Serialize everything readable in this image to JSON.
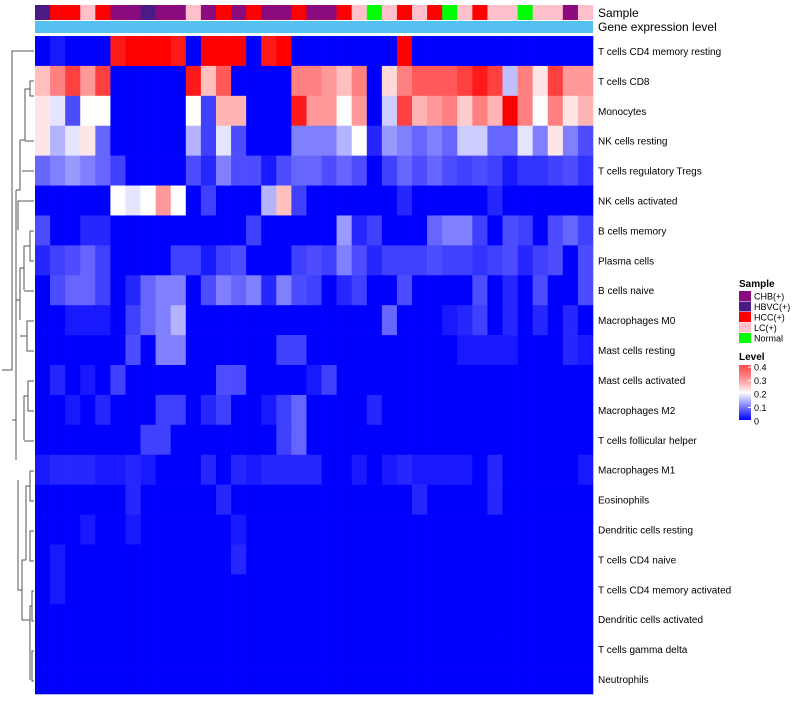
{
  "chart_data": {
    "type": "heatmap",
    "title": "",
    "annotation_tracks": [
      "Sample",
      "Gene expression level"
    ],
    "rows": [
      "T cells CD4 memory resting",
      "T cells CD8",
      "Monocytes",
      "NK cells resting",
      "T cells regulatory  Tregs",
      "NK cells activated",
      "B cells memory",
      "Plasma cells",
      "B cells naive",
      "Macrophages M0",
      "Mast cells resting",
      "Mast cells activated",
      "Macrophages M2",
      "T cells follicular helper",
      "Macrophages M1",
      "Eosinophils",
      "Dendritic cells resting",
      "T cells CD4 naive",
      "T cells CD4 memory activated",
      "Dendritic cells activated",
      "T cells gamma delta",
      "Neutrophils"
    ],
    "sample_groups": [
      "HBVC(+)",
      "HCC(+)",
      "HCC(+)",
      "LC(+)",
      "HCC(+)",
      "CHB(+)",
      "CHB(+)",
      "HBVC(+)",
      "CHB(+)",
      "CHB(+)",
      "LC(+)",
      "CHB(+)",
      "HCC(+)",
      "CHB(+)",
      "HCC(+)",
      "CHB(+)",
      "CHB(+)",
      "HCC(+)",
      "CHB(+)",
      "CHB(+)",
      "HCC(+)",
      "LC(+)",
      "Normal",
      "LC(+)",
      "HCC(+)",
      "LC(+)",
      "HCC(+)",
      "Normal",
      "LC(+)",
      "HCC(+)",
      "LC(+)",
      "LC(+)",
      "Normal",
      "LC(+)",
      "LC(+)",
      "CHB(+)",
      "LC(+)"
    ],
    "values": [
      [
        0.0,
        0.02,
        0.0,
        0.0,
        0.0,
        0.38,
        0.4,
        0.4,
        0.4,
        0.38,
        0.0,
        0.4,
        0.4,
        0.4,
        0.0,
        0.38,
        0.4,
        0.0,
        0.0,
        0.0,
        0.0,
        0.0,
        0.0,
        0.0,
        0.4,
        0.0,
        0.0,
        0.0,
        0.0,
        0.0,
        0.0,
        0.0,
        0.0,
        0.0,
        0.0,
        0.0,
        0.0
      ],
      [
        0.25,
        0.3,
        0.35,
        0.28,
        0.35,
        0.0,
        0.0,
        0.0,
        0.0,
        0.0,
        0.38,
        0.25,
        0.33,
        0.0,
        0.0,
        0.0,
        0.0,
        0.3,
        0.3,
        0.28,
        0.25,
        0.3,
        0.0,
        0.23,
        0.3,
        0.33,
        0.33,
        0.33,
        0.35,
        0.38,
        0.35,
        0.15,
        0.3,
        0.22,
        0.35,
        0.28,
        0.28
      ],
      [
        0.22,
        0.18,
        0.06,
        0.2,
        0.2,
        0.0,
        0.0,
        0.0,
        0.0,
        0.0,
        0.2,
        0.05,
        0.26,
        0.26,
        0.0,
        0.0,
        0.0,
        0.38,
        0.28,
        0.28,
        0.2,
        0.28,
        0.0,
        0.16,
        0.35,
        0.26,
        0.28,
        0.3,
        0.24,
        0.3,
        0.26,
        0.4,
        0.3,
        0.2,
        0.3,
        0.22,
        0.26
      ],
      [
        0.22,
        0.14,
        0.18,
        0.22,
        0.08,
        0.0,
        0.0,
        0.0,
        0.0,
        0.0,
        0.14,
        0.05,
        0.18,
        0.06,
        0.0,
        0.0,
        0.0,
        0.1,
        0.1,
        0.1,
        0.14,
        0.2,
        0.03,
        0.12,
        0.1,
        0.08,
        0.1,
        0.08,
        0.16,
        0.16,
        0.08,
        0.08,
        0.18,
        0.1,
        0.22,
        0.1,
        0.06
      ],
      [
        0.08,
        0.1,
        0.12,
        0.1,
        0.08,
        0.05,
        0.0,
        0.0,
        0.0,
        0.0,
        0.06,
        0.03,
        0.1,
        0.06,
        0.06,
        0.02,
        0.06,
        0.08,
        0.08,
        0.06,
        0.08,
        0.06,
        0.0,
        0.05,
        0.08,
        0.06,
        0.08,
        0.06,
        0.05,
        0.06,
        0.05,
        0.02,
        0.04,
        0.04,
        0.05,
        0.06,
        0.04
      ],
      [
        0.0,
        0.0,
        0.0,
        0.0,
        0.0,
        0.2,
        0.18,
        0.2,
        0.28,
        0.2,
        0.0,
        0.05,
        0.0,
        0.0,
        0.0,
        0.14,
        0.25,
        0.05,
        0.0,
        0.0,
        0.0,
        0.0,
        0.0,
        0.0,
        0.03,
        0.0,
        0.0,
        0.0,
        0.0,
        0.0,
        0.03,
        0.0,
        0.0,
        0.0,
        0.0,
        0.0,
        0.0
      ],
      [
        0.06,
        0.0,
        0.0,
        0.03,
        0.03,
        0.0,
        0.0,
        0.0,
        0.0,
        0.0,
        0.0,
        0.0,
        0.0,
        0.0,
        0.05,
        0.0,
        0.0,
        0.0,
        0.0,
        0.0,
        0.12,
        0.03,
        0.05,
        0.0,
        0.0,
        0.0,
        0.08,
        0.1,
        0.1,
        0.05,
        0.0,
        0.06,
        0.05,
        0.0,
        0.06,
        0.08,
        0.05
      ],
      [
        0.03,
        0.05,
        0.06,
        0.08,
        0.05,
        0.0,
        0.0,
        0.0,
        0.0,
        0.05,
        0.05,
        0.02,
        0.05,
        0.06,
        0.0,
        0.0,
        0.0,
        0.05,
        0.06,
        0.05,
        0.1,
        0.06,
        0.03,
        0.05,
        0.05,
        0.05,
        0.06,
        0.05,
        0.05,
        0.04,
        0.05,
        0.06,
        0.03,
        0.05,
        0.06,
        0.0,
        0.06
      ],
      [
        0.0,
        0.06,
        0.08,
        0.08,
        0.05,
        0.0,
        0.03,
        0.08,
        0.1,
        0.1,
        0.0,
        0.06,
        0.1,
        0.08,
        0.1,
        0.03,
        0.1,
        0.06,
        0.05,
        0.0,
        0.03,
        0.05,
        0.0,
        0.0,
        0.06,
        0.0,
        0.0,
        0.0,
        0.0,
        0.06,
        0.0,
        0.03,
        0.0,
        0.06,
        0.0,
        0.0,
        0.06
      ],
      [
        0.0,
        0.0,
        0.02,
        0.02,
        0.02,
        0.0,
        0.05,
        0.08,
        0.1,
        0.14,
        0.0,
        0.0,
        0.0,
        0.0,
        0.0,
        0.0,
        0.0,
        0.0,
        0.0,
        0.0,
        0.0,
        0.0,
        0.0,
        0.08,
        0.0,
        0.0,
        0.0,
        0.02,
        0.03,
        0.05,
        0.0,
        0.03,
        0.0,
        0.03,
        0.0,
        0.03,
        0.0
      ],
      [
        0.0,
        0.0,
        0.0,
        0.0,
        0.0,
        0.0,
        0.06,
        0.0,
        0.1,
        0.1,
        0.0,
        0.0,
        0.0,
        0.0,
        0.0,
        0.0,
        0.05,
        0.05,
        0.0,
        0.0,
        0.0,
        0.0,
        0.0,
        0.0,
        0.0,
        0.0,
        0.0,
        0.0,
        0.02,
        0.02,
        0.02,
        0.02,
        0.0,
        0.0,
        0.0,
        0.03,
        0.02
      ],
      [
        0.0,
        0.03,
        0.0,
        0.02,
        0.0,
        0.05,
        0.0,
        0.0,
        0.0,
        0.0,
        0.0,
        0.0,
        0.06,
        0.06,
        0.0,
        0.0,
        0.0,
        0.0,
        0.02,
        0.05,
        0.0,
        0.0,
        0.0,
        0.0,
        0.0,
        0.0,
        0.0,
        0.0,
        0.0,
        0.0,
        0.0,
        0.0,
        0.0,
        0.0,
        0.0,
        0.0,
        0.0
      ],
      [
        0.0,
        0.0,
        0.02,
        0.0,
        0.03,
        0.0,
        0.0,
        0.0,
        0.05,
        0.05,
        0.0,
        0.03,
        0.05,
        0.0,
        0.0,
        0.02,
        0.05,
        0.08,
        0.0,
        0.0,
        0.0,
        0.0,
        0.03,
        0.0,
        0.0,
        0.0,
        0.0,
        0.0,
        0.0,
        0.0,
        0.0,
        0.0,
        0.0,
        0.0,
        0.0,
        0.0,
        0.0
      ],
      [
        0.0,
        0.0,
        0.0,
        0.0,
        0.0,
        0.0,
        0.0,
        0.05,
        0.05,
        0.0,
        0.0,
        0.0,
        0.0,
        0.0,
        0.0,
        0.0,
        0.05,
        0.08,
        0.0,
        0.0,
        0.0,
        0.0,
        0.0,
        0.0,
        0.0,
        0.0,
        0.0,
        0.0,
        0.0,
        0.0,
        0.0,
        0.0,
        0.0,
        0.0,
        0.0,
        0.0,
        0.0
      ],
      [
        0.02,
        0.03,
        0.03,
        0.03,
        0.02,
        0.02,
        0.03,
        0.02,
        0.0,
        0.0,
        0.0,
        0.03,
        0.0,
        0.03,
        0.02,
        0.03,
        0.03,
        0.03,
        0.03,
        0.0,
        0.0,
        0.02,
        0.0,
        0.02,
        0.03,
        0.02,
        0.02,
        0.02,
        0.02,
        0.0,
        0.03,
        0.0,
        0.0,
        0.0,
        0.0,
        0.0,
        0.02
      ],
      [
        0.0,
        0.0,
        0.0,
        0.0,
        0.0,
        0.0,
        0.03,
        0.0,
        0.0,
        0.0,
        0.0,
        0.0,
        0.03,
        0.0,
        0.0,
        0.0,
        0.0,
        0.0,
        0.0,
        0.0,
        0.0,
        0.0,
        0.0,
        0.0,
        0.0,
        0.03,
        0.0,
        0.0,
        0.0,
        0.0,
        0.03,
        0.0,
        0.0,
        0.0,
        0.0,
        0.0,
        0.0
      ],
      [
        0.0,
        0.0,
        0.0,
        0.02,
        0.0,
        0.0,
        0.02,
        0.0,
        0.0,
        0.0,
        0.0,
        0.0,
        0.0,
        0.02,
        0.0,
        0.0,
        0.0,
        0.0,
        0.0,
        0.0,
        0.0,
        0.0,
        0.0,
        0.0,
        0.0,
        0.0,
        0.0,
        0.0,
        0.0,
        0.0,
        0.0,
        0.0,
        0.0,
        0.0,
        0.0,
        0.0,
        0.0
      ],
      [
        0.0,
        0.02,
        0.0,
        0.0,
        0.0,
        0.0,
        0.0,
        0.0,
        0.0,
        0.0,
        0.0,
        0.0,
        0.0,
        0.03,
        0.0,
        0.0,
        0.0,
        0.0,
        0.0,
        0.0,
        0.0,
        0.0,
        0.0,
        0.0,
        0.0,
        0.0,
        0.0,
        0.0,
        0.0,
        0.0,
        0.0,
        0.0,
        0.0,
        0.0,
        0.0,
        0.0,
        0.0
      ],
      [
        0.0,
        0.02,
        0.0,
        0.0,
        0.0,
        0.0,
        0.0,
        0.0,
        0.0,
        0.0,
        0.0,
        0.0,
        0.0,
        0.0,
        0.0,
        0.0,
        0.0,
        0.0,
        0.0,
        0.0,
        0.0,
        0.0,
        0.0,
        0.0,
        0.0,
        0.0,
        0.0,
        0.0,
        0.0,
        0.0,
        0.0,
        0.0,
        0.0,
        0.0,
        0.0,
        0.0,
        0.0
      ],
      [
        0.0,
        0.0,
        0.0,
        0.0,
        0.0,
        0.0,
        0.0,
        0.0,
        0.0,
        0.0,
        0.0,
        0.0,
        0.0,
        0.0,
        0.0,
        0.0,
        0.0,
        0.0,
        0.0,
        0.0,
        0.0,
        0.0,
        0.0,
        0.0,
        0.0,
        0.0,
        0.0,
        0.0,
        0.0,
        0.0,
        0.0,
        0.0,
        0.0,
        0.0,
        0.0,
        0.0,
        0.0
      ],
      [
        0.0,
        0.0,
        0.0,
        0.0,
        0.0,
        0.0,
        0.0,
        0.0,
        0.0,
        0.0,
        0.0,
        0.0,
        0.0,
        0.0,
        0.0,
        0.0,
        0.0,
        0.0,
        0.0,
        0.0,
        0.0,
        0.0,
        0.0,
        0.0,
        0.0,
        0.0,
        0.0,
        0.0,
        0.0,
        0.0,
        0.0,
        0.0,
        0.0,
        0.0,
        0.0,
        0.0,
        0.0
      ],
      [
        0.0,
        0.0,
        0.0,
        0.0,
        0.0,
        0.0,
        0.0,
        0.0,
        0.0,
        0.0,
        0.0,
        0.0,
        0.0,
        0.0,
        0.0,
        0.0,
        0.0,
        0.0,
        0.0,
        0.0,
        0.0,
        0.0,
        0.0,
        0.0,
        0.0,
        0.0,
        0.0,
        0.0,
        0.0,
        0.0,
        0.0,
        0.0,
        0.0,
        0.0,
        0.0,
        0.0,
        0.0
      ]
    ],
    "color_scale": {
      "min": 0,
      "max": 0.4,
      "low": "#0000ff",
      "mid": "#ffffff",
      "high": "#ff0000",
      "midpoint": 0.2
    },
    "legend_sample": {
      "title": "Sample",
      "entries": [
        {
          "label": "CHB(+)",
          "color": "#8b0a7e"
        },
        {
          "label": "HBVC(+)",
          "color": "#4b1a86"
        },
        {
          "label": "HCC(+)",
          "color": "#ff0000"
        },
        {
          "label": "LC(+)",
          "color": "#ffc0cb"
        },
        {
          "label": "Normal",
          "color": "#00ff00"
        }
      ]
    },
    "legend_level": {
      "title": "Level",
      "ticks": [
        "0.4",
        "0.3",
        "0.2",
        "0.1",
        "0"
      ]
    },
    "expression_track_color": "#56c0f0"
  }
}
